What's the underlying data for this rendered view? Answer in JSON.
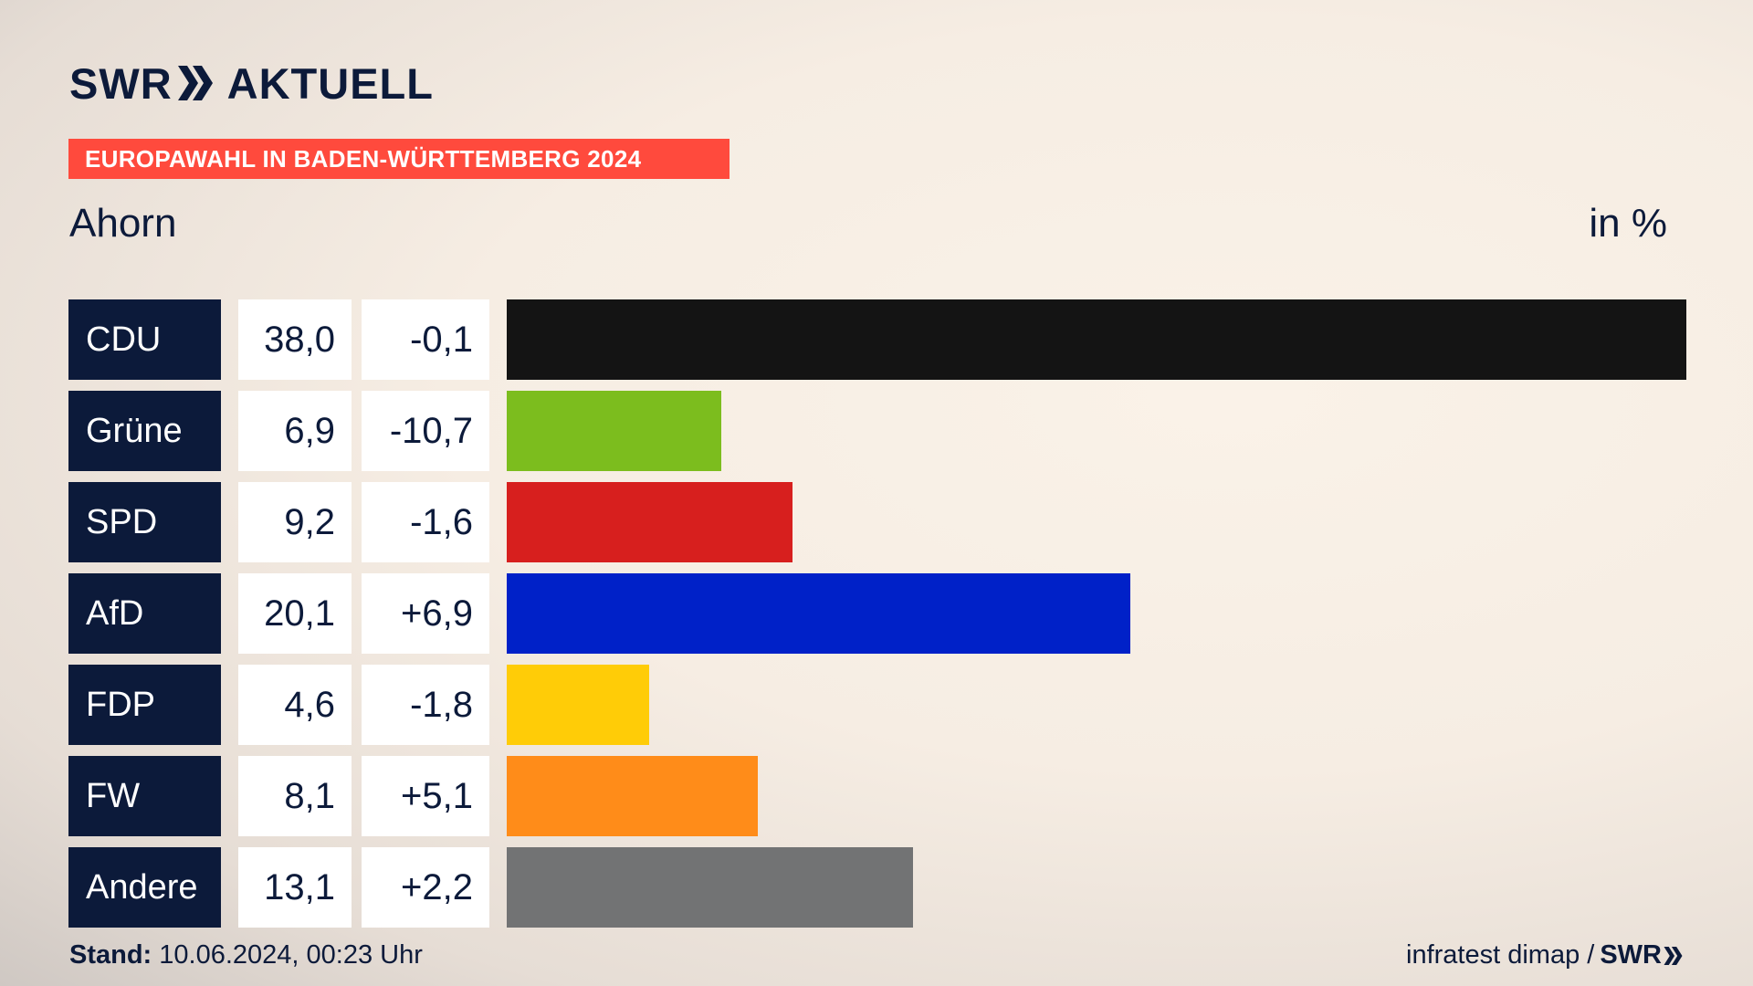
{
  "brand": {
    "logo_swr": "SWR",
    "logo_aktuell": "AKTUELL"
  },
  "banner": {
    "label": "EUROPAWAHL IN BADEN-WÜRTTEMBERG 2024",
    "color": "#ff4a3d"
  },
  "header": {
    "place": "Ahorn",
    "unit": "in %"
  },
  "chart_data": {
    "type": "bar",
    "orientation": "horizontal",
    "title": "Ahorn",
    "unit": "in %",
    "categories": [
      "CDU",
      "Grüne",
      "SPD",
      "AfD",
      "FDP",
      "FW",
      "Andere"
    ],
    "values": [
      38.0,
      6.9,
      9.2,
      20.1,
      4.6,
      8.1,
      13.1
    ],
    "value_labels": [
      "38,0",
      "6,9",
      "9,2",
      "20,1",
      "4,6",
      "8,1",
      "13,1"
    ],
    "diff_labels": [
      "-0,1",
      "-10,7",
      "-1,6",
      "+6,9",
      "-1,8",
      "+5,1",
      "+2,2"
    ],
    "colors": [
      "#141414",
      "#7cbd1e",
      "#d71f1e",
      "#0021c8",
      "#ffcc07",
      "#ff8c19",
      "#727374"
    ],
    "xlim": [
      0,
      38.0
    ]
  },
  "footer": {
    "stand_label": "Stand:",
    "stand_value": "10.06.2024, 00:23 Uhr",
    "source": "infratest dimap /",
    "source_logo": "SWR"
  }
}
